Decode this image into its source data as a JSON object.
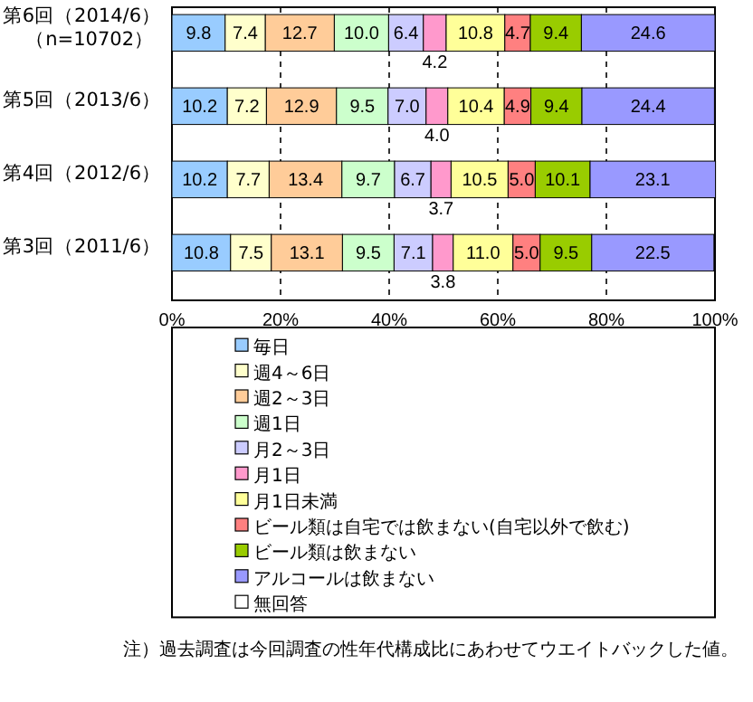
{
  "chart_data": {
    "type": "bar",
    "orientation": "horizontal",
    "stacked": true,
    "categories": [
      "第6回（2014/6）（n=10702）",
      "第5回（2013/6）",
      "第4回（2012/6）",
      "第3回（2011/6）"
    ],
    "series": [
      {
        "name": "毎日",
        "color": "#99ccff",
        "values": [
          9.8,
          10.2,
          10.2,
          10.8
        ],
        "value_labels": [
          "9.8",
          "10.2",
          "10.2",
          "10.8"
        ]
      },
      {
        "name": "週4～6日",
        "color": "#ffffcc",
        "values": [
          7.4,
          7.2,
          7.7,
          7.5
        ],
        "value_labels": [
          "7.4",
          "7.2",
          "7.7",
          "7.5"
        ]
      },
      {
        "name": "週2～3日",
        "color": "#ffcc99",
        "values": [
          12.7,
          12.9,
          13.4,
          13.1
        ],
        "value_labels": [
          "12.7",
          "12.9",
          "13.4",
          "13.1"
        ]
      },
      {
        "name": "週1日",
        "color": "#ccffcc",
        "values": [
          10.0,
          9.5,
          9.7,
          9.5
        ],
        "value_labels": [
          "10.0",
          "9.5",
          "9.7",
          "9.5"
        ]
      },
      {
        "name": "月2～3日",
        "color": "#ccccff",
        "values": [
          6.4,
          7.0,
          6.7,
          7.1
        ],
        "value_labels": [
          "6.4",
          "7.0",
          "6.7",
          "7.1"
        ]
      },
      {
        "name": "月1日",
        "color": "#ff99cc",
        "values": [
          4.2,
          4.0,
          3.7,
          3.8
        ],
        "value_labels": [
          "4.2",
          "4.0",
          "3.7",
          "3.8"
        ]
      },
      {
        "name": "月1日未満",
        "color": "#ffff99",
        "values": [
          10.8,
          10.4,
          10.5,
          11.0
        ],
        "value_labels": [
          "10.8",
          "10.4",
          "10.5",
          "11.0"
        ]
      },
      {
        "name": "ビール類は自宅では飲まない(自宅以外で飲む)",
        "color": "#ff8080",
        "values": [
          4.7,
          4.9,
          5.0,
          5.0
        ],
        "value_labels": [
          "4.7",
          "4.9",
          "5.0",
          "5.0"
        ]
      },
      {
        "name": "ビール類は飲まない",
        "color": "#99cc00",
        "values": [
          9.4,
          9.4,
          10.1,
          9.5
        ],
        "value_labels": [
          "9.4",
          "9.4",
          "10.1",
          "9.5"
        ]
      },
      {
        "name": "アルコールは飲まない",
        "color": "#9999ff",
        "values": [
          24.6,
          24.4,
          23.1,
          22.5
        ],
        "value_labels": [
          "24.6",
          "24.4",
          "23.1",
          "22.5"
        ]
      },
      {
        "name": "無回答",
        "color": "#ffffff",
        "values": [
          null,
          null,
          null,
          null
        ]
      }
    ],
    "xlim": [
      0,
      100
    ],
    "xticks": [
      {
        "value": 0,
        "label": "0%"
      },
      {
        "value": 20,
        "label": "20%"
      },
      {
        "value": 40,
        "label": "40%"
      },
      {
        "value": 60,
        "label": "60%"
      },
      {
        "value": 80,
        "label": "80%"
      },
      {
        "value": 100,
        "label": "100%"
      }
    ],
    "grid": "x",
    "legend": "bottom",
    "annotations": [
      "注）過去調査は今回調査の性年代構成比にあわせてウエイトバックした値。"
    ]
  }
}
